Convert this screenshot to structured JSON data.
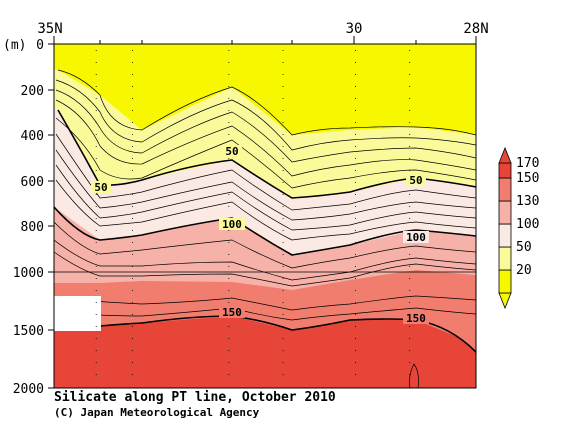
{
  "chart_data": {
    "type": "contour",
    "title": "Silicate along PT line, October 2010",
    "credit": "(C) Japan Meteorological Agency",
    "ylabel": "(m)",
    "x_ticks": [
      "35N",
      "30",
      "28N"
    ],
    "y_ticks_upper": [
      "0",
      "200",
      "400",
      "600",
      "800",
      "1000"
    ],
    "y_ticks_lower": [
      "1500",
      "2000"
    ],
    "y_range_upper": [
      0,
      1000
    ],
    "y_range_lower": [
      1000,
      2000
    ],
    "legend": {
      "levels": [
        "20",
        "50",
        "100",
        "130",
        "150",
        "170"
      ],
      "colors": [
        "#f7f700",
        "#fafa9a",
        "#fbe9e3",
        "#f6b1a8",
        "#f07d6e",
        "#e64538"
      ]
    },
    "contour_labels": [
      {
        "text": "50",
        "depth_m": 620,
        "lat": 34.3
      },
      {
        "text": "50",
        "depth_m": 480,
        "lat": 32.1
      },
      {
        "text": "50",
        "depth_m": 600,
        "lat": 29.1
      },
      {
        "text": "100",
        "depth_m": 790,
        "lat": 32.1
      },
      {
        "text": "100",
        "depth_m": 840,
        "lat": 29.1
      },
      {
        "text": "150",
        "depth_m": 1360,
        "lat": 32.1
      },
      {
        "text": "150",
        "depth_m": 1420,
        "lat": 29.1
      }
    ],
    "stations_lat": [
      34.3,
      33.7,
      32.1,
      31.2,
      30.0,
      29.1
    ]
  }
}
